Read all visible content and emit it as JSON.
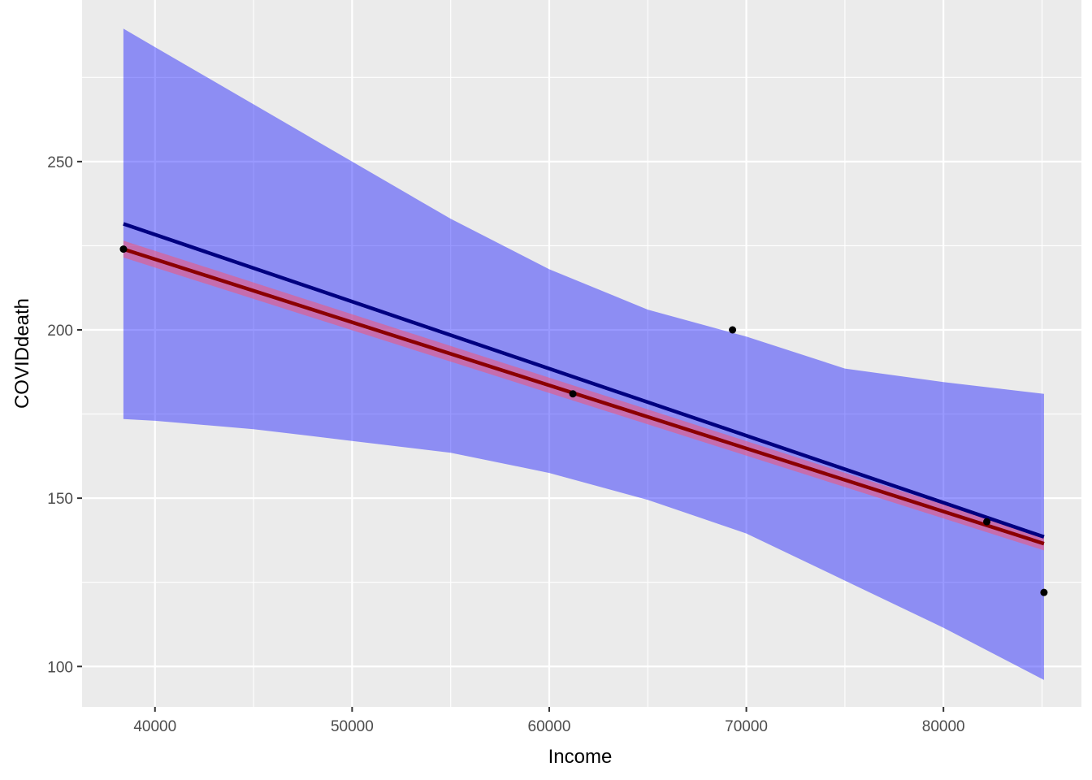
{
  "chart_data": {
    "type": "scatter",
    "title": "",
    "xlabel": "Income",
    "ylabel": "COVIDdeath",
    "xlim": [
      36300,
      87000
    ],
    "ylim": [
      88000,
      0
    ],
    "x_ticks": [
      40000,
      50000,
      60000,
      70000,
      80000
    ],
    "x_tick_labels": [
      "40000",
      "50000",
      "60000",
      "70000",
      "80000"
    ],
    "y_ticks": [
      100,
      150,
      200,
      250
    ],
    "y_tick_labels": [
      "100",
      "150",
      "200",
      "250"
    ],
    "y_range": [
      88,
      298
    ],
    "grid": true,
    "panel_background": "#ebebeb",
    "points": [
      {
        "x": 38400,
        "y": 224
      },
      {
        "x": 61200,
        "y": 181
      },
      {
        "x": 69300,
        "y": 200
      },
      {
        "x": 82200,
        "y": 143
      },
      {
        "x": 85100,
        "y": 122
      }
    ],
    "series": [
      {
        "kind": "confidence_band",
        "color": "#0000ff",
        "opacity": 0.4,
        "x": [
          38400,
          40000,
          45000,
          50000,
          55000,
          60000,
          65000,
          70000,
          75000,
          80000,
          85100
        ],
        "upper": [
          289.5,
          284,
          267,
          250,
          233,
          218,
          206,
          198,
          188.5,
          184.5,
          181
        ],
        "lower": [
          173.5,
          173,
          170.5,
          167,
          163.5,
          157.5,
          149.5,
          139.5,
          125.5,
          111.5,
          96
        ]
      },
      {
        "kind": "confidence_band",
        "color": "#ff4d6a",
        "opacity": 0.5,
        "x": [
          38400,
          85100
        ],
        "upper": [
          226.5,
          138.5
        ],
        "lower": [
          221.5,
          134.5
        ]
      },
      {
        "kind": "fit_line",
        "color": "#000080",
        "x": [
          38400,
          85100
        ],
        "y": [
          231.5,
          138.5
        ]
      },
      {
        "kind": "fit_line",
        "color": "#8b0000",
        "x": [
          38400,
          85100
        ],
        "y": [
          224,
          136.5
        ]
      }
    ]
  }
}
